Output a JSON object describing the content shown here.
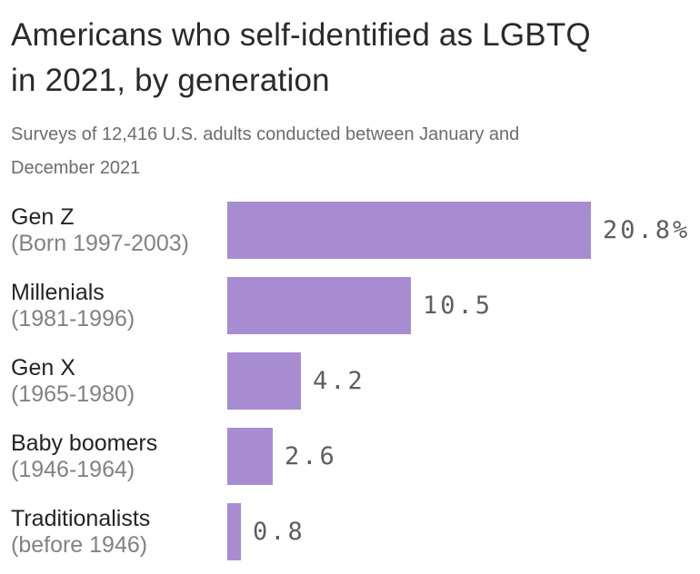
{
  "header": {
    "title_lines": [
      "Americans who self-identified as LGBTQ",
      "in 2021, by generation"
    ],
    "subtitle_lines": [
      "Surveys of 12,416 U.S. adults conducted between January and",
      "December 2021"
    ]
  },
  "chart_data": {
    "type": "bar",
    "orientation": "horizontal",
    "title": "Americans who self-identified as LGBTQ in 2021, by generation",
    "subtitle": "Surveys of 12,416 U.S. adults conducted between January and December 2021",
    "unit": "percent",
    "bar_color": "#a88cd2",
    "value_label_color": "#5e5e5e",
    "xlim": [
      0,
      20.8
    ],
    "grid": false,
    "legend": false,
    "categories": [
      "Gen Z (Born 1997-2003)",
      "Millenials (1981-1996)",
      "Gen X (1965-1980)",
      "Baby boomers (1946-1964)",
      "Traditionalists (before 1946)"
    ],
    "values": [
      20.8,
      10.5,
      4.2,
      2.6,
      0.8
    ],
    "rows": [
      {
        "name": "Gen Z",
        "years": "(Born 1997-2003)",
        "value": 20.8,
        "label": "20.8%"
      },
      {
        "name": "Millenials",
        "years": "(1981-1996)",
        "value": 10.5,
        "label": "10.5"
      },
      {
        "name": "Gen X",
        "years": "(1965-1980)",
        "value": 4.2,
        "label": "4.2"
      },
      {
        "name": "Baby boomers",
        "years": "(1946-1964)",
        "value": 2.6,
        "label": "2.6"
      },
      {
        "name": "Traditionalists",
        "years": "(before 1946)",
        "value": 0.8,
        "label": "0.8"
      }
    ]
  }
}
